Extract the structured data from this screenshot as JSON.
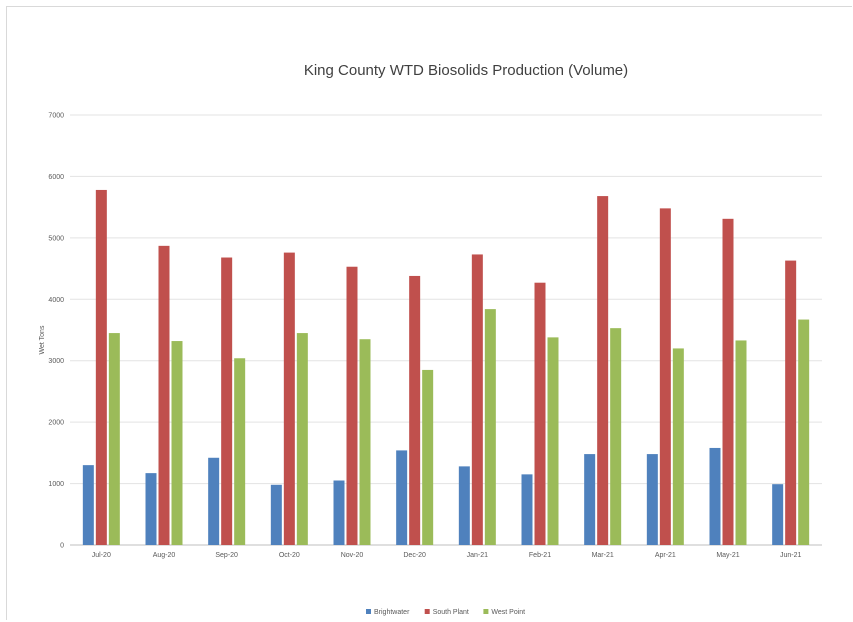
{
  "chart_data": {
    "type": "bar",
    "title": "King County WTD Biosolids Production (Volume)",
    "xlabel": "",
    "ylabel": "Wet Tons",
    "ylim": [
      0,
      7000
    ],
    "yticks": [
      0,
      1000,
      2000,
      3000,
      4000,
      5000,
      6000,
      7000
    ],
    "grid": true,
    "legend_position": "bottom",
    "categories": [
      "Jul-20",
      "Aug-20",
      "Sep-20",
      "Oct-20",
      "Nov-20",
      "Dec-20",
      "Jan-21",
      "Feb-21",
      "Mar-21",
      "Apr-21",
      "May-21",
      "Jun-21"
    ],
    "series": [
      {
        "name": "Brightwater",
        "color": "#4f81bd",
        "values": [
          1300,
          1170,
          1420,
          980,
          1050,
          1540,
          1280,
          1150,
          1480,
          1480,
          1580,
          990
        ]
      },
      {
        "name": "South Plant",
        "color": "#c0504d",
        "values": [
          5780,
          4870,
          4680,
          4760,
          4530,
          4380,
          4730,
          4270,
          5680,
          5480,
          5310,
          4630
        ]
      },
      {
        "name": "West Point",
        "color": "#9bbb59",
        "values": [
          3450,
          3320,
          3040,
          3450,
          3350,
          2850,
          3840,
          3380,
          3530,
          3200,
          3330,
          3670
        ]
      }
    ]
  }
}
